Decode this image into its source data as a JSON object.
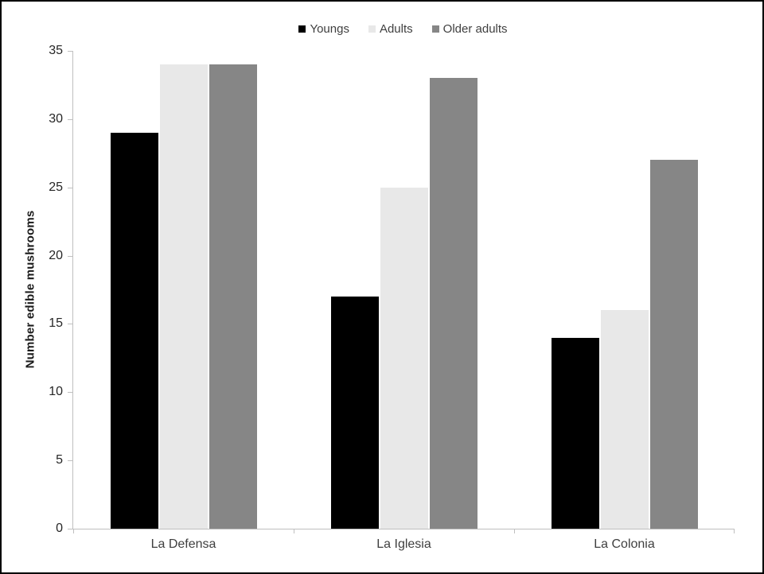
{
  "chart_data": {
    "type": "bar",
    "title": "",
    "categories": [
      "La Defensa",
      "La Iglesia",
      "La Colonia"
    ],
    "series": [
      {
        "name": "Youngs",
        "color": "#000000",
        "values": [
          29,
          17,
          14
        ]
      },
      {
        "name": "Adults",
        "color": "#e8e8e8",
        "values": [
          34,
          25,
          16
        ]
      },
      {
        "name": "Older adults",
        "color": "#868686",
        "values": [
          34,
          33,
          27
        ]
      }
    ],
    "xlabel": "",
    "ylabel": "Number edible mushrooms",
    "ylim": [
      0,
      35
    ],
    "yticks": [
      0,
      5,
      10,
      15,
      20,
      25,
      30,
      35
    ],
    "grid": false,
    "legend_position": "top-center",
    "axis_color": "#bfbfbf",
    "tick_label_color": "#262626"
  }
}
